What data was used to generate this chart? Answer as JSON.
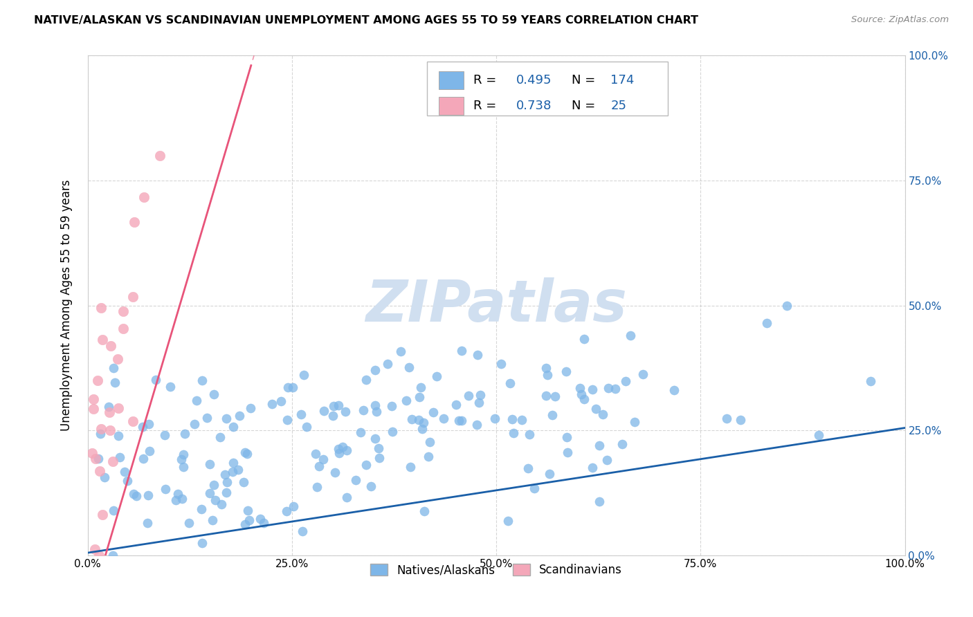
{
  "title": "NATIVE/ALASKAN VS SCANDINAVIAN UNEMPLOYMENT AMONG AGES 55 TO 59 YEARS CORRELATION CHART",
  "source": "Source: ZipAtlas.com",
  "ylabel": "Unemployment Among Ages 55 to 59 years",
  "xlim": [
    0,
    1.0
  ],
  "ylim": [
    0,
    1.0
  ],
  "xtick_positions": [
    0.0,
    0.25,
    0.5,
    0.75,
    1.0
  ],
  "ytick_positions": [
    0.0,
    0.25,
    0.5,
    0.75,
    1.0
  ],
  "native_color": "#7EB6E8",
  "scandinavian_color": "#F4A7B9",
  "native_line_color": "#1A5FA8",
  "scandinavian_line_color": "#E8547A",
  "native_R": 0.495,
  "native_N": 174,
  "scandinavian_R": 0.738,
  "scandinavian_N": 25,
  "watermark": "ZIPatlas",
  "background_color": "#ffffff",
  "grid_color": "#cccccc",
  "legend_label_native": "Natives/Alaskans",
  "legend_label_scandinavian": "Scandinavians"
}
